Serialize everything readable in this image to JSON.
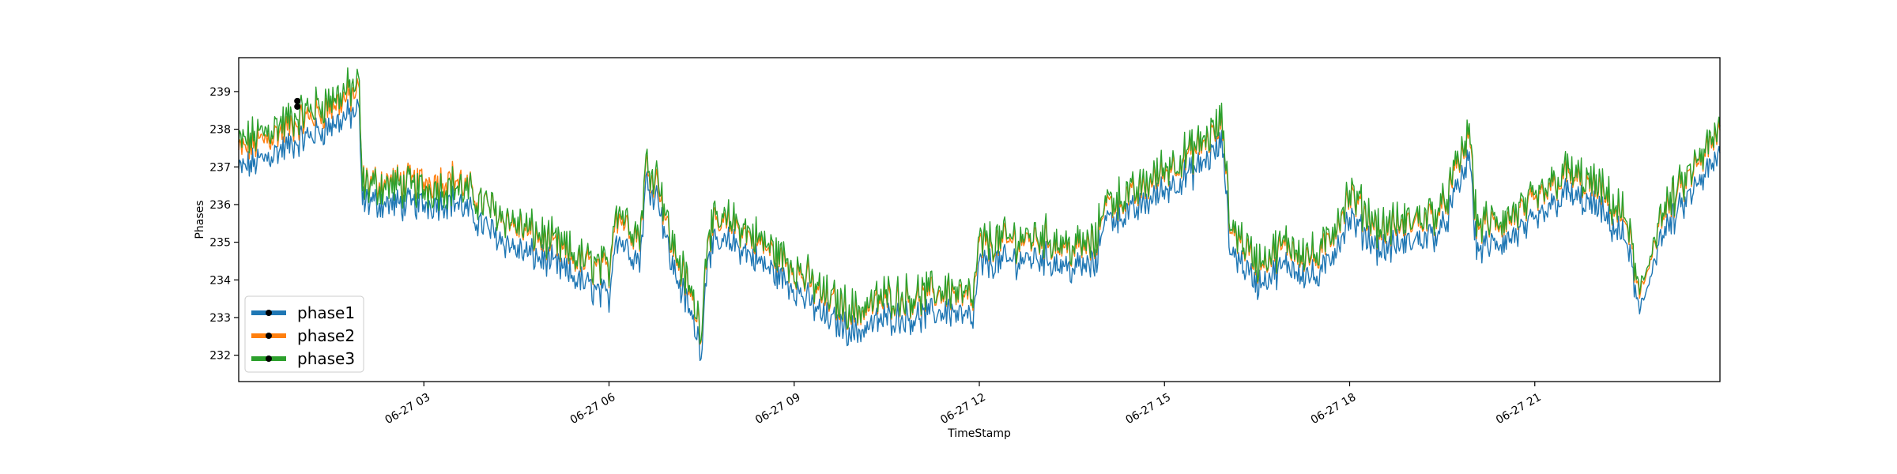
{
  "chart_data": {
    "type": "line",
    "title": "",
    "xlabel": "TimeStamp",
    "ylabel": "Phases",
    "x_ticks": [
      "06-27 03",
      "06-27 06",
      "06-27 09",
      "06-27 12",
      "06-27 15",
      "06-27 18",
      "06-27 21"
    ],
    "x_tick_hours": [
      3,
      6,
      9,
      12,
      15,
      18,
      21
    ],
    "xlim_hours": [
      0,
      24
    ],
    "y_ticks": [
      "232",
      "233",
      "234",
      "235",
      "236",
      "237",
      "238",
      "239"
    ],
    "ylim": [
      231.3,
      239.9
    ],
    "grid": false,
    "legend_position": "lower-left",
    "x_hours": [
      0.0,
      0.5,
      1.0,
      1.5,
      1.95,
      2.0,
      2.5,
      3.0,
      3.5,
      4.0,
      4.5,
      5.0,
      5.5,
      6.0,
      6.1,
      6.5,
      6.6,
      6.8,
      7.0,
      7.3,
      7.5,
      7.6,
      8.0,
      8.5,
      9.0,
      9.5,
      10.0,
      10.5,
      11.0,
      11.5,
      11.9,
      12.0,
      12.5,
      13.0,
      13.5,
      13.9,
      14.0,
      14.5,
      15.0,
      15.5,
      15.95,
      16.05,
      16.5,
      17.0,
      17.5,
      18.0,
      18.5,
      19.0,
      19.5,
      19.95,
      20.05,
      20.5,
      21.0,
      21.5,
      22.0,
      22.5,
      22.7,
      23.0,
      23.5,
      24.0
    ],
    "series": [
      {
        "name": "phase1",
        "color": "#1f77b4",
        "values": [
          236.9,
          237.3,
          237.7,
          238.1,
          238.5,
          236.1,
          236.0,
          236.0,
          236.1,
          235.4,
          234.8,
          234.5,
          234.0,
          233.5,
          235.2,
          234.5,
          236.6,
          236.2,
          234.5,
          233.2,
          232.2,
          234.8,
          235.0,
          234.4,
          233.8,
          233.0,
          232.6,
          233.0,
          233.0,
          233.2,
          232.9,
          234.4,
          234.5,
          234.6,
          234.3,
          234.4,
          235.6,
          235.8,
          236.4,
          236.9,
          237.6,
          234.9,
          233.9,
          234.4,
          234.0,
          235.6,
          234.8,
          235.0,
          235.3,
          237.3,
          234.8,
          235.0,
          235.5,
          236.3,
          235.9,
          235.0,
          233.0,
          235.0,
          236.2,
          237.3
        ]
      },
      {
        "name": "phase2",
        "color": "#ff7f0e",
        "values": [
          237.4,
          237.8,
          238.2,
          238.6,
          239.0,
          236.6,
          236.6,
          236.6,
          236.7,
          236.0,
          235.4,
          235.0,
          234.5,
          234.2,
          235.8,
          235.1,
          237.0,
          236.6,
          235.0,
          233.7,
          232.7,
          235.3,
          235.5,
          234.9,
          234.3,
          233.5,
          233.1,
          233.5,
          233.5,
          233.7,
          233.4,
          234.9,
          235.0,
          235.1,
          234.8,
          234.9,
          236.0,
          236.2,
          236.9,
          237.4,
          238.1,
          235.5,
          234.4,
          234.9,
          234.5,
          236.2,
          235.3,
          235.5,
          235.8,
          237.9,
          235.4,
          235.5,
          236.0,
          236.8,
          236.4,
          235.5,
          233.4,
          235.5,
          236.7,
          237.9
        ]
      },
      {
        "name": "phase3",
        "color": "#2ca02c",
        "values": [
          237.6,
          238.0,
          238.4,
          238.8,
          239.2,
          236.5,
          236.5,
          236.4,
          236.5,
          236.0,
          235.5,
          235.1,
          234.6,
          234.3,
          236.0,
          235.2,
          237.1,
          236.8,
          235.1,
          233.8,
          232.8,
          235.4,
          235.6,
          235.0,
          234.4,
          233.6,
          233.2,
          233.6,
          233.6,
          233.8,
          233.5,
          235.0,
          235.1,
          235.2,
          234.9,
          235.0,
          236.1,
          236.3,
          237.0,
          237.5,
          238.2,
          235.6,
          234.5,
          235.0,
          234.6,
          236.3,
          235.4,
          235.6,
          235.9,
          238.0,
          235.5,
          235.6,
          236.1,
          236.9,
          236.5,
          235.6,
          233.5,
          235.6,
          236.8,
          238.0
        ]
      }
    ],
    "markers": [
      {
        "hour": 0.95,
        "value": 238.75
      },
      {
        "hour": 0.95,
        "value": 238.6
      }
    ]
  }
}
